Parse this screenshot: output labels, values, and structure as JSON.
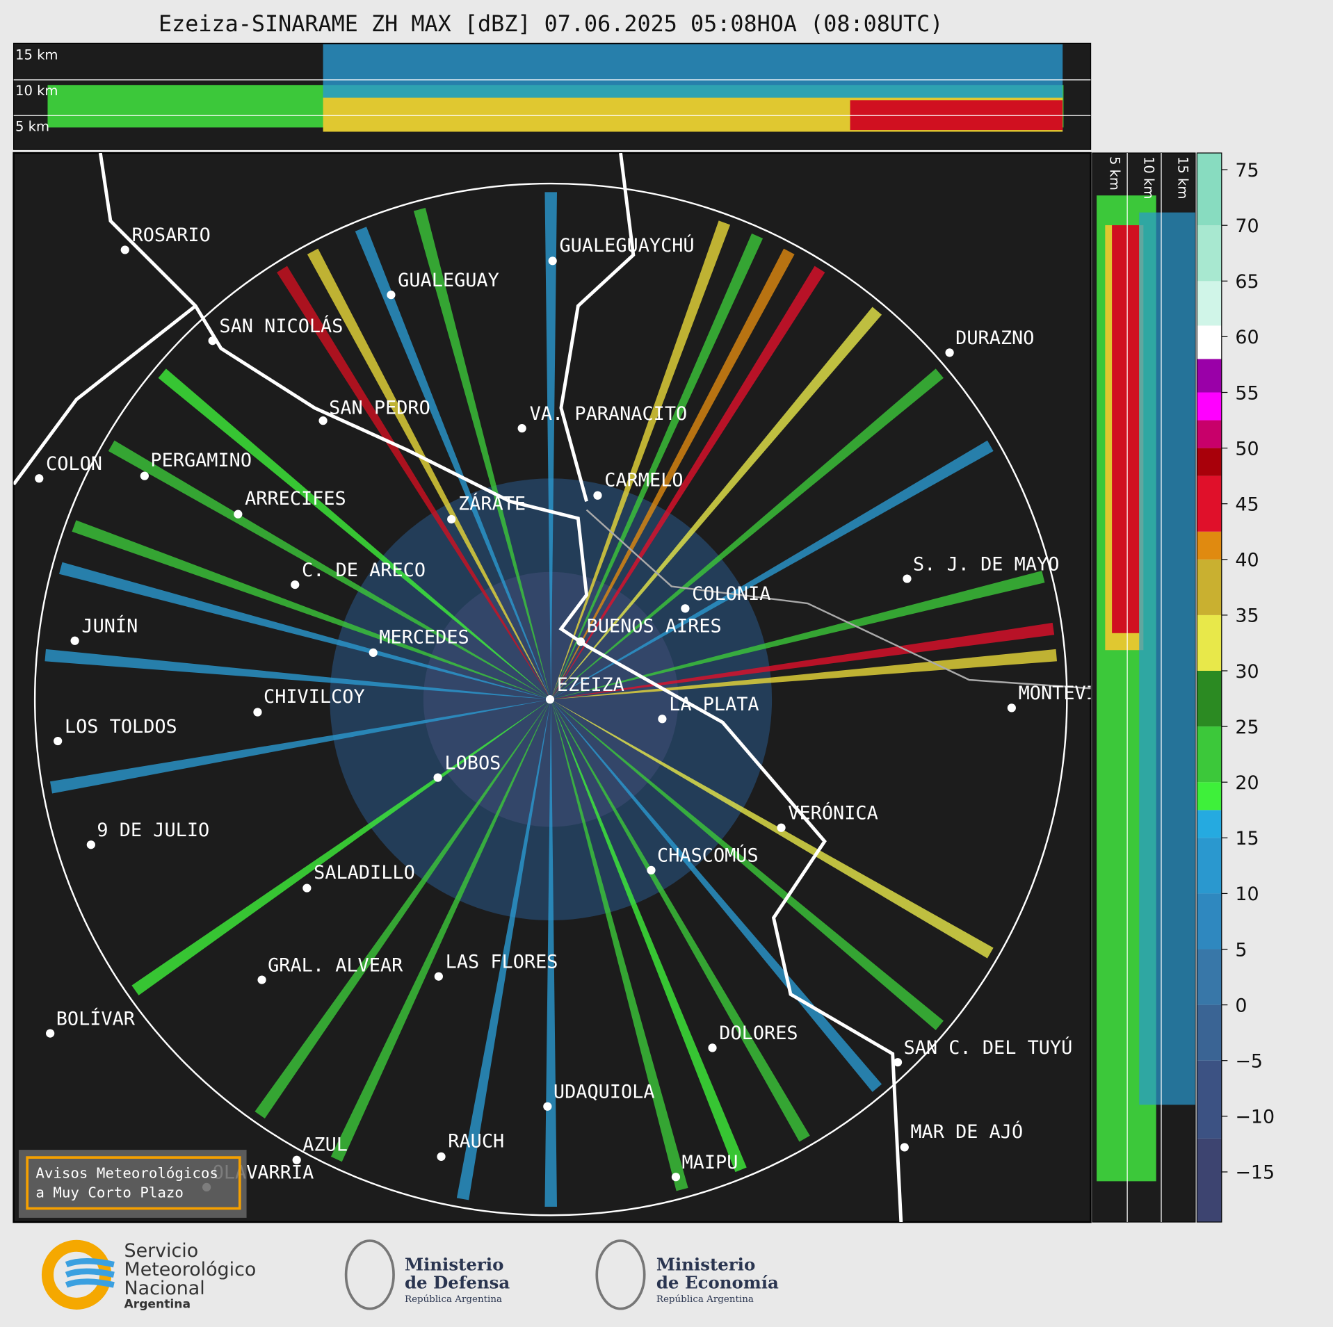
{
  "title": "Ezeiza-SINARAME ZH MAX [dBZ] 07.06.2025 05:08HOA (08:08UTC)",
  "top_panel_labels": [
    "15 km",
    "10 km",
    "5 km"
  ],
  "side_panel_labels": [
    "5 km",
    "10 km",
    "15 km"
  ],
  "cities": [
    "ROSARIO",
    "GUALEGUAYCHÚ",
    "GUALEGUAY",
    "SAN NICOLÁS",
    "DURAZNO",
    "SAN PEDRO",
    "VA. PARANACITO",
    "COLON",
    "PERGAMINO",
    "CARMELO",
    "ARRECIFES",
    "ZÁRATE",
    "S. J. DE MAYO",
    "C. DE ARECO",
    "COLONIA",
    "JUNÍN",
    "BUENOS AIRES",
    "MERCEDES",
    "EZEIZA",
    "CHIVILCOY",
    "MONTEVIDEO",
    "LA PLATA",
    "LOS TOLDOS",
    "LOBOS",
    "VERÓNICA",
    "9 DE JULIO",
    "CHASCOMÚS",
    "SALADILLO",
    "GRAL. ALVEAR",
    "LAS FLORES",
    "BOLÍVAR",
    "DOLORES",
    "SAN C. DEL TUYÚ",
    "UDAQUIOLA",
    "MAR DE AJÓ",
    "AZUL",
    "RAUCH",
    "MAIPU",
    "OLAVARRÍA"
  ],
  "warning_button": [
    "Avisos Meteorológicos",
    "a Muy Corto Plazo"
  ],
  "colorbar": {
    "lim": [
      -19.5,
      76.5
    ],
    "ticks": [
      75,
      70,
      65,
      60,
      55,
      50,
      45,
      40,
      35,
      30,
      25,
      20,
      15,
      10,
      5,
      0,
      {
        "value": -5,
        "label": "−5"
      },
      {
        "value": -10,
        "label": "−10"
      },
      {
        "value": -15,
        "label": "−15"
      }
    ],
    "bands": [
      {
        "lo": -19.5,
        "hi": -12,
        "color": "#3d4470"
      },
      {
        "lo": -12,
        "hi": -5,
        "color": "#3c5283"
      },
      {
        "lo": -5,
        "hi": 0,
        "color": "#3a6494"
      },
      {
        "lo": 0,
        "hi": 5,
        "color": "#3877a8"
      },
      {
        "lo": 5,
        "hi": 10,
        "color": "#2f88bf"
      },
      {
        "lo": 10,
        "hi": 15,
        "color": "#2a98cf"
      },
      {
        "lo": 15,
        "hi": 17.5,
        "color": "#25aae0"
      },
      {
        "lo": 17.5,
        "hi": 20,
        "color": "#3ef03a"
      },
      {
        "lo": 20,
        "hi": 25,
        "color": "#3cc83a"
      },
      {
        "lo": 25,
        "hi": 30,
        "color": "#2b8a22"
      },
      {
        "lo": 30,
        "hi": 35,
        "color": "#e8e84a"
      },
      {
        "lo": 35,
        "hi": 40,
        "color": "#c9b030"
      },
      {
        "lo": 40,
        "hi": 42.5,
        "color": "#e08a10"
      },
      {
        "lo": 42.5,
        "hi": 47.5,
        "color": "#e0102a"
      },
      {
        "lo": 47.5,
        "hi": 50,
        "color": "#a8000a"
      },
      {
        "lo": 50,
        "hi": 52.5,
        "color": "#c8006a"
      },
      {
        "lo": 52.5,
        "hi": 55,
        "color": "#ff00ff"
      },
      {
        "lo": 55,
        "hi": 58,
        "color": "#9a00a8"
      },
      {
        "lo": 58,
        "hi": 61,
        "color": "#ffffff"
      },
      {
        "lo": 61,
        "hi": 65,
        "color": "#d0f5e8"
      },
      {
        "lo": 65,
        "hi": 70,
        "color": "#a8e8d0"
      },
      {
        "lo": 70,
        "hi": 76.5,
        "color": "#88dcc0"
      }
    ]
  },
  "logos": {
    "smn": [
      "Servicio",
      "Meteorológico",
      "Nacional",
      "Argentina"
    ],
    "defensa": [
      "Ministerio",
      "de Defensa",
      "República Argentina"
    ],
    "economia": [
      "Ministerio",
      "de Economía",
      "República Argentina"
    ]
  }
}
